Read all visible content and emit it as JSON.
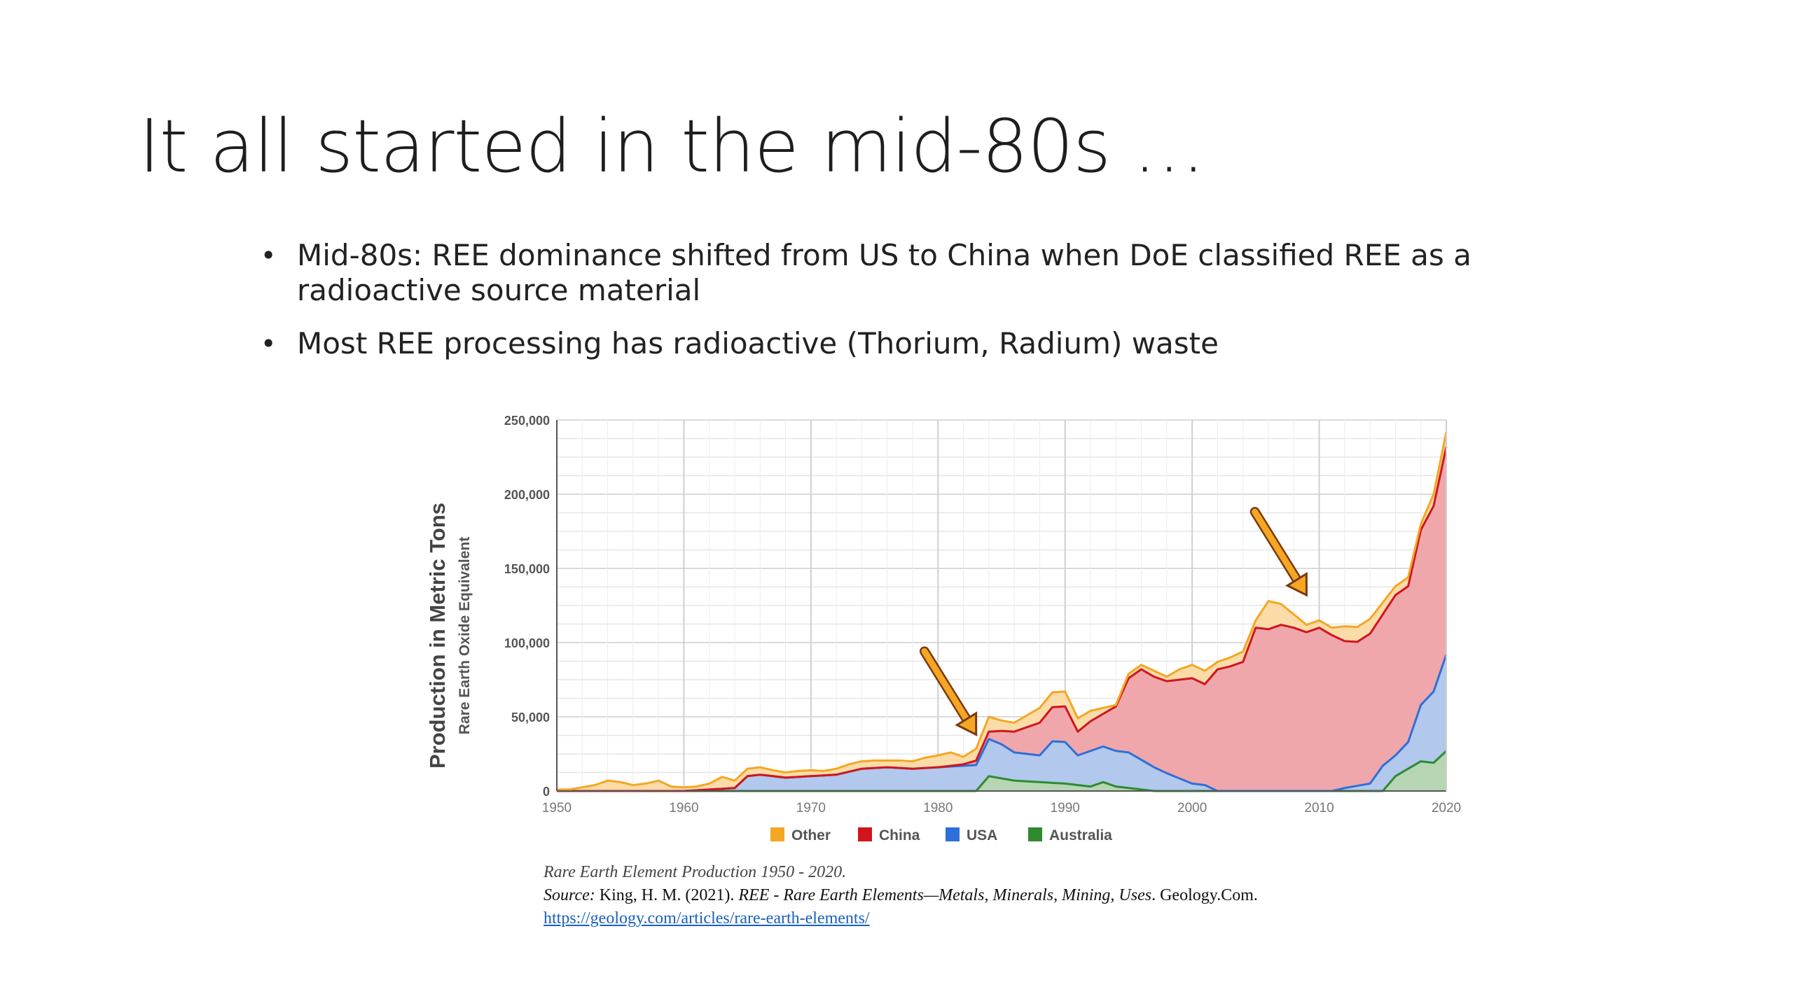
{
  "slide": {
    "title": "It all started in the mid-80s …",
    "bullets": [
      {
        "text": "Mid-80s: REE dominance shifted from US to China when DoE classified REE as a radioactive source material"
      },
      {
        "text": "Most REE processing has radioactive (Thorium, Radium) waste"
      }
    ],
    "bullet_glyph": "•"
  },
  "caption": {
    "title": "Rare Earth Element Production 1950 - 2020.",
    "source_label": "Source:",
    "source_authors": "King, H. M. (2021).",
    "source_work": "REE - Rare Earth Elements—Metals, Minerals, Mining, Uses",
    "source_publisher": ". Geology.Com.",
    "url": "https://geology.com/articles/rare-earth-elements/"
  },
  "chart_data": {
    "type": "area",
    "stacked": true,
    "ylabel": "Production in Metric Tons",
    "ylabel_sub": "Rare Earth Oxide Equivalent",
    "xlim": [
      1950,
      2020
    ],
    "ylim": [
      0,
      250000
    ],
    "x_ticks": [
      "1950",
      "1960",
      "1970",
      "1980",
      "1990",
      "2000",
      "2010",
      "2020"
    ],
    "y_ticks": [
      "0",
      "50,000",
      "100,000",
      "150,000",
      "200,000",
      "250,000"
    ],
    "grid": true,
    "legend_position": "bottom",
    "colors": {
      "Other": "#f5a623",
      "China": "#d0151d",
      "USA": "#2e6fd8",
      "Australia": "#2f8a2f"
    },
    "fill_colors": {
      "Other": "#fbdca8",
      "China": "#f0a7ab",
      "USA": "#b2c8ec",
      "Australia": "#b6d6b3"
    },
    "series": [
      {
        "name": "Australia",
        "x": [
          1950,
          1983,
          1984,
          1986,
          1988,
          1990,
          1992,
          1993,
          1994,
          1996,
          1997,
          2015,
          2016,
          2017,
          2018,
          2019,
          2020
        ],
        "values": [
          0,
          0,
          10000,
          7000,
          6000,
          5000,
          3000,
          6000,
          3000,
          1000,
          0,
          0,
          10000,
          15000,
          20000,
          19000,
          27000
        ]
      },
      {
        "name": "USA",
        "x": [
          1950,
          1960,
          1964,
          1965,
          1966,
          1968,
          1970,
          1972,
          1974,
          1976,
          1978,
          1980,
          1982,
          1983,
          1984,
          1985,
          1986,
          1988,
          1989,
          1990,
          1991,
          1992,
          1994,
          1995,
          1996,
          1998,
          2000,
          2001,
          2002,
          2011,
          2012,
          2014,
          2015,
          2016,
          2017,
          2018,
          2019,
          2020
        ],
        "values": [
          0,
          0,
          2000,
          10000,
          11000,
          9000,
          10000,
          11000,
          15000,
          16000,
          15000,
          16000,
          17000,
          17500,
          25000,
          23000,
          19000,
          18000,
          28000,
          28000,
          20000,
          24000,
          24000,
          24000,
          20000,
          12000,
          5000,
          4000,
          0,
          0,
          2000,
          5000,
          17000,
          14000,
          18000,
          38000,
          48000,
          65000
        ]
      },
      {
        "name": "China",
        "x": [
          1950,
          1980,
          1982,
          1984,
          1985,
          1986,
          1988,
          1990,
          1991,
          1992,
          1993,
          1994,
          1995,
          1996,
          1997,
          1998,
          2000,
          2001,
          2002,
          2003,
          2004,
          2005,
          2006,
          2007,
          2008,
          2009,
          2010,
          2011,
          2012,
          2013,
          2014,
          2015,
          2016,
          2017,
          2018,
          2019,
          2020
        ],
        "values": [
          0,
          0,
          1000,
          5000,
          9000,
          14000,
          22000,
          24000,
          16000,
          20000,
          22000,
          30000,
          50000,
          61000,
          61000,
          62000,
          71000,
          68000,
          82000,
          84000,
          87000,
          110000,
          109000,
          112000,
          110000,
          107000,
          110000,
          105000,
          99000,
          97000,
          101000,
          102000,
          108000,
          105000,
          118000,
          125000,
          140000
        ]
      },
      {
        "name": "Other",
        "x": [
          1950,
          1951,
          1953,
          1954,
          1955,
          1956,
          1957,
          1958,
          1959,
          1960,
          1961,
          1962,
          1963,
          1964,
          1965,
          1966,
          1967,
          1968,
          1969,
          1970,
          1971,
          1972,
          1973,
          1974,
          1975,
          1976,
          1977,
          1978,
          1979,
          1980,
          1981,
          1982,
          1983,
          1984,
          1985,
          1986,
          1987,
          1988,
          1989,
          1990,
          1991,
          1992,
          1993,
          1994,
          1995,
          1996,
          1997,
          1998,
          1999,
          2000,
          2001,
          2002,
          2003,
          2004,
          2005,
          2006,
          2007,
          2008,
          2009,
          2010,
          2011,
          2012,
          2013,
          2014,
          2015,
          2016,
          2017,
          2018,
          2019,
          2020
        ],
        "values": [
          1000,
          1000,
          4000,
          7000,
          6000,
          4000,
          5000,
          7000,
          3000,
          2500,
          2500,
          4000,
          8000,
          5000,
          5000,
          5000,
          4000,
          3500,
          4000,
          4000,
          3000,
          4000,
          5000,
          5000,
          5000,
          4500,
          5000,
          5000,
          7000,
          8000,
          9000,
          5000,
          8000,
          10000,
          7000,
          6000,
          8000,
          10000,
          10000,
          10000,
          9000,
          7000,
          4000,
          1000,
          3000,
          3000,
          4000,
          3000,
          7000,
          9000,
          9000,
          5000,
          6000,
          7000,
          5000,
          19000,
          14000,
          9000,
          5000,
          5000,
          5000,
          10000,
          10000,
          10000,
          8000,
          6000,
          6000,
          4000,
          8000,
          10000
        ]
      }
    ],
    "legend": [
      "Other",
      "China",
      "USA",
      "Australia"
    ],
    "annotations": [
      {
        "type": "arrow",
        "tip": [
          1983,
          38000
        ],
        "color": "#f5a623"
      },
      {
        "type": "arrow",
        "tip": [
          2009,
          132000
        ],
        "color": "#f5a623"
      }
    ]
  }
}
